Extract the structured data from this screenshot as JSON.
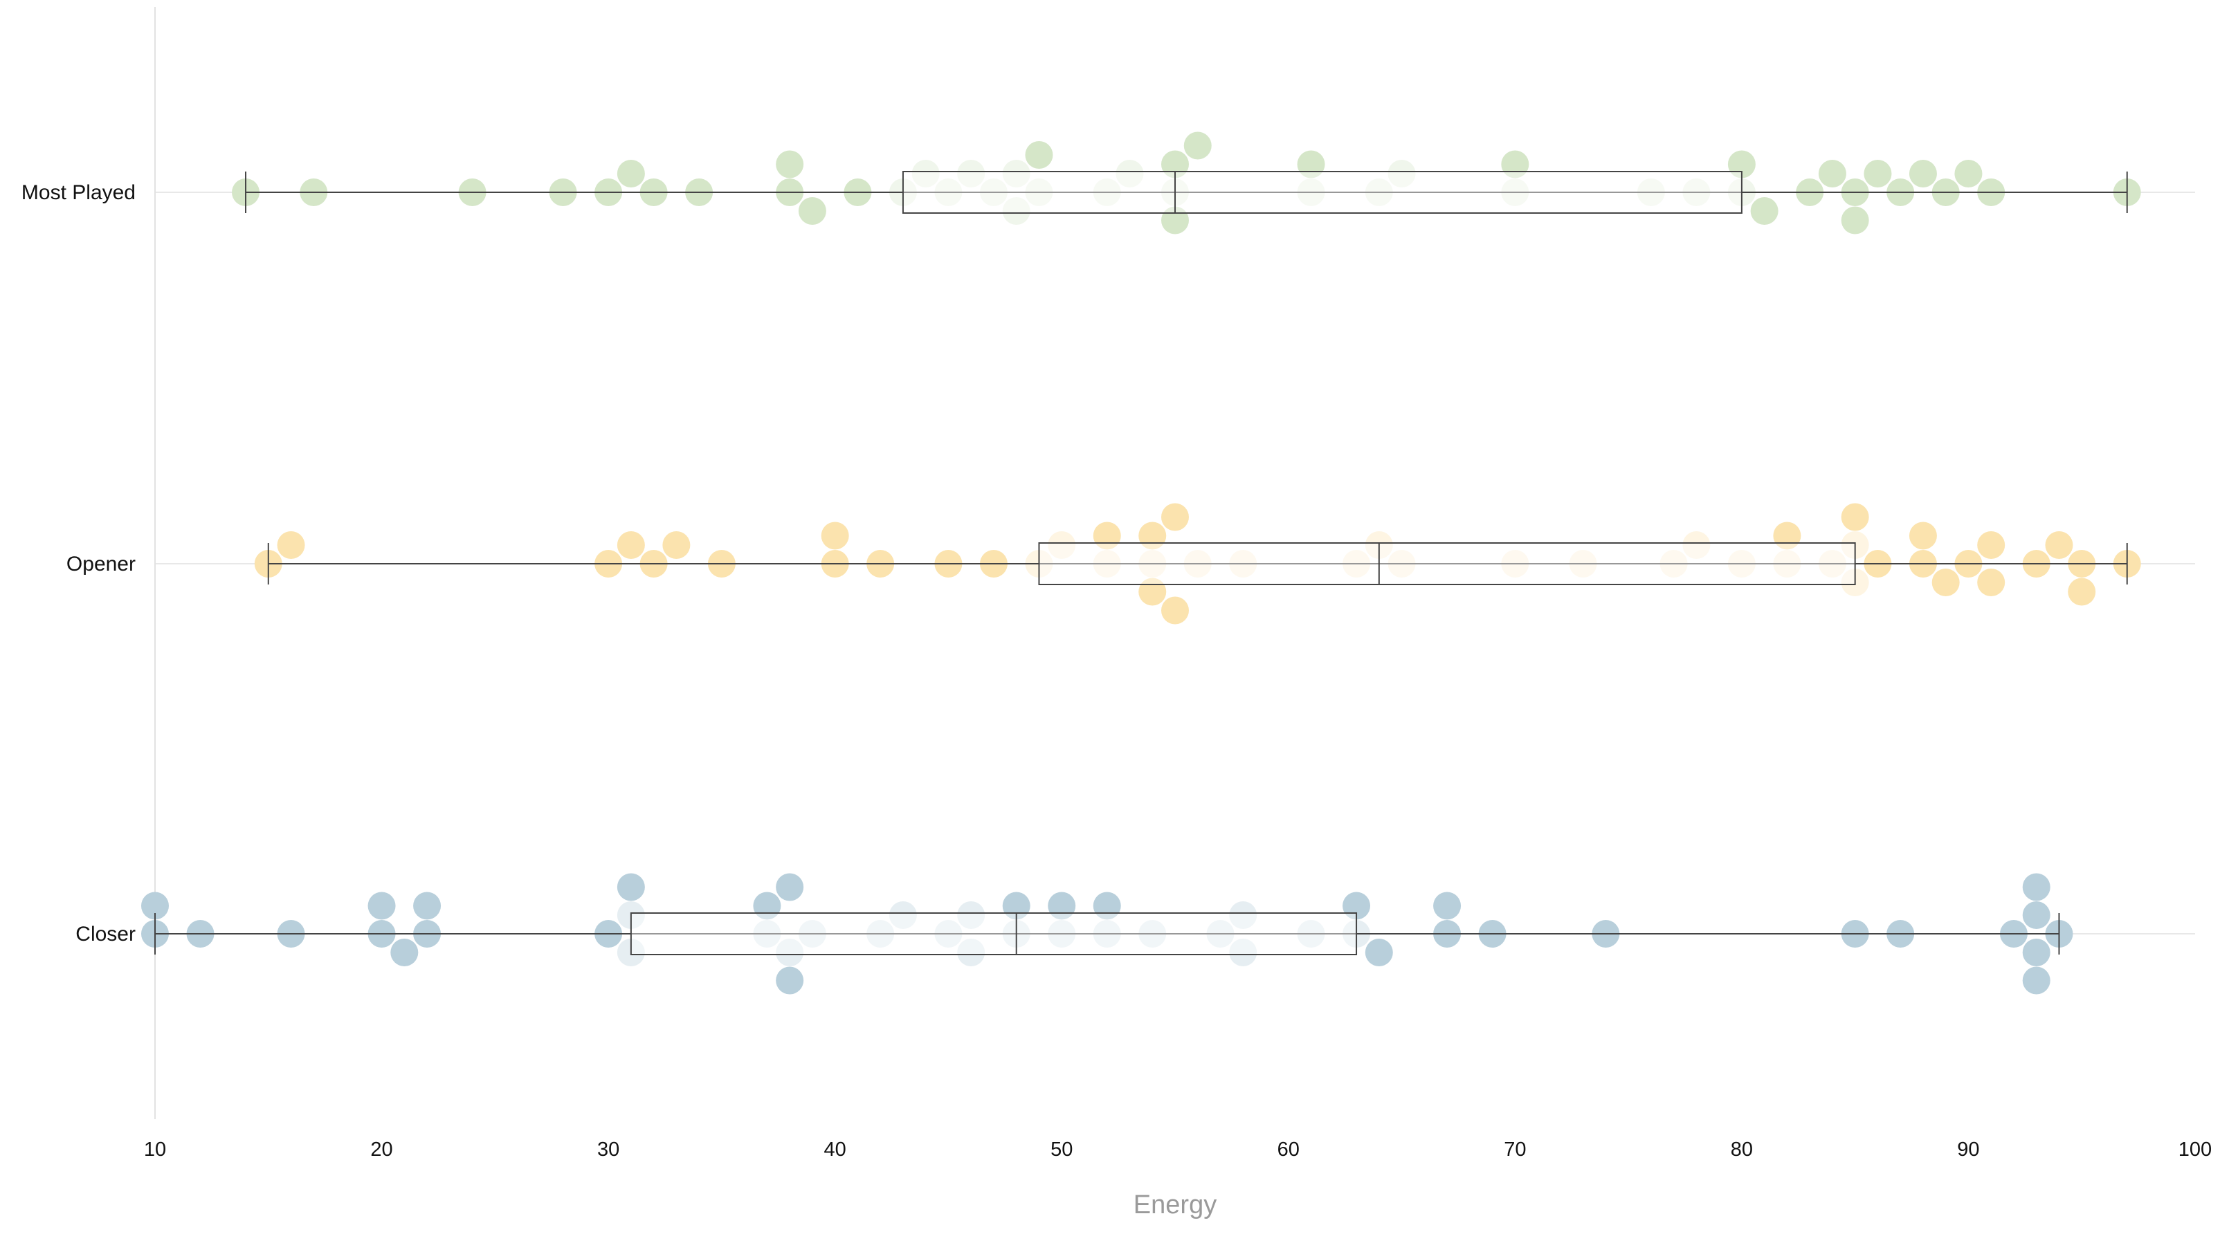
{
  "chart_data": {
    "type": "scatter",
    "subtype": "beeswarm with box plots",
    "xlabel": "Energy",
    "ylabel": "",
    "xlim": [
      10,
      100
    ],
    "xticks": [
      "10",
      "20",
      "30",
      "40",
      "50",
      "60",
      "70",
      "80",
      "90",
      "100"
    ],
    "grid": "horizontal lines at each category",
    "legend": "none",
    "series": [
      {
        "name": "Most Played",
        "color": "#d5e6c8",
        "box": {
          "min": 14,
          "q1": 43,
          "median": 55,
          "q3": 80,
          "max": 97
        },
        "values": [
          14,
          17,
          24,
          28,
          30,
          31,
          32,
          34,
          38,
          38,
          39,
          41,
          43,
          44,
          45,
          46,
          47,
          48,
          48,
          49,
          49,
          52,
          53,
          55,
          55,
          55,
          56,
          61,
          61,
          64,
          65,
          70,
          70,
          76,
          78,
          80,
          80,
          81,
          83,
          84,
          85,
          85,
          86,
          87,
          88,
          89,
          90,
          91,
          97
        ]
      },
      {
        "name": "Opener",
        "color": "#fbe3ae",
        "box": {
          "min": 15,
          "q1": 49,
          "median": 64,
          "q3": 85,
          "max": 97
        },
        "values": [
          15,
          16,
          30,
          31,
          32,
          33,
          35,
          40,
          40,
          42,
          45,
          47,
          49,
          50,
          52,
          52,
          54,
          54,
          54,
          55,
          55,
          56,
          58,
          63,
          64,
          65,
          70,
          73,
          77,
          78,
          80,
          82,
          82,
          84,
          85,
          85,
          85,
          86,
          88,
          88,
          89,
          90,
          91,
          91,
          93,
          94,
          95,
          95,
          97
        ]
      },
      {
        "name": "Closer",
        "color": "#b8cfdb",
        "box": {
          "min": 10,
          "q1": 31,
          "median": 48,
          "q3": 63,
          "max": 94
        },
        "values": [
          10,
          10,
          12,
          16,
          20,
          20,
          21,
          22,
          22,
          30,
          31,
          31,
          31,
          37,
          37,
          38,
          38,
          38,
          39,
          42,
          43,
          45,
          46,
          46,
          48,
          48,
          50,
          50,
          52,
          52,
          54,
          57,
          58,
          58,
          61,
          63,
          63,
          64,
          67,
          67,
          69,
          74,
          85,
          87,
          92,
          93,
          93,
          93,
          93,
          94
        ]
      }
    ]
  }
}
